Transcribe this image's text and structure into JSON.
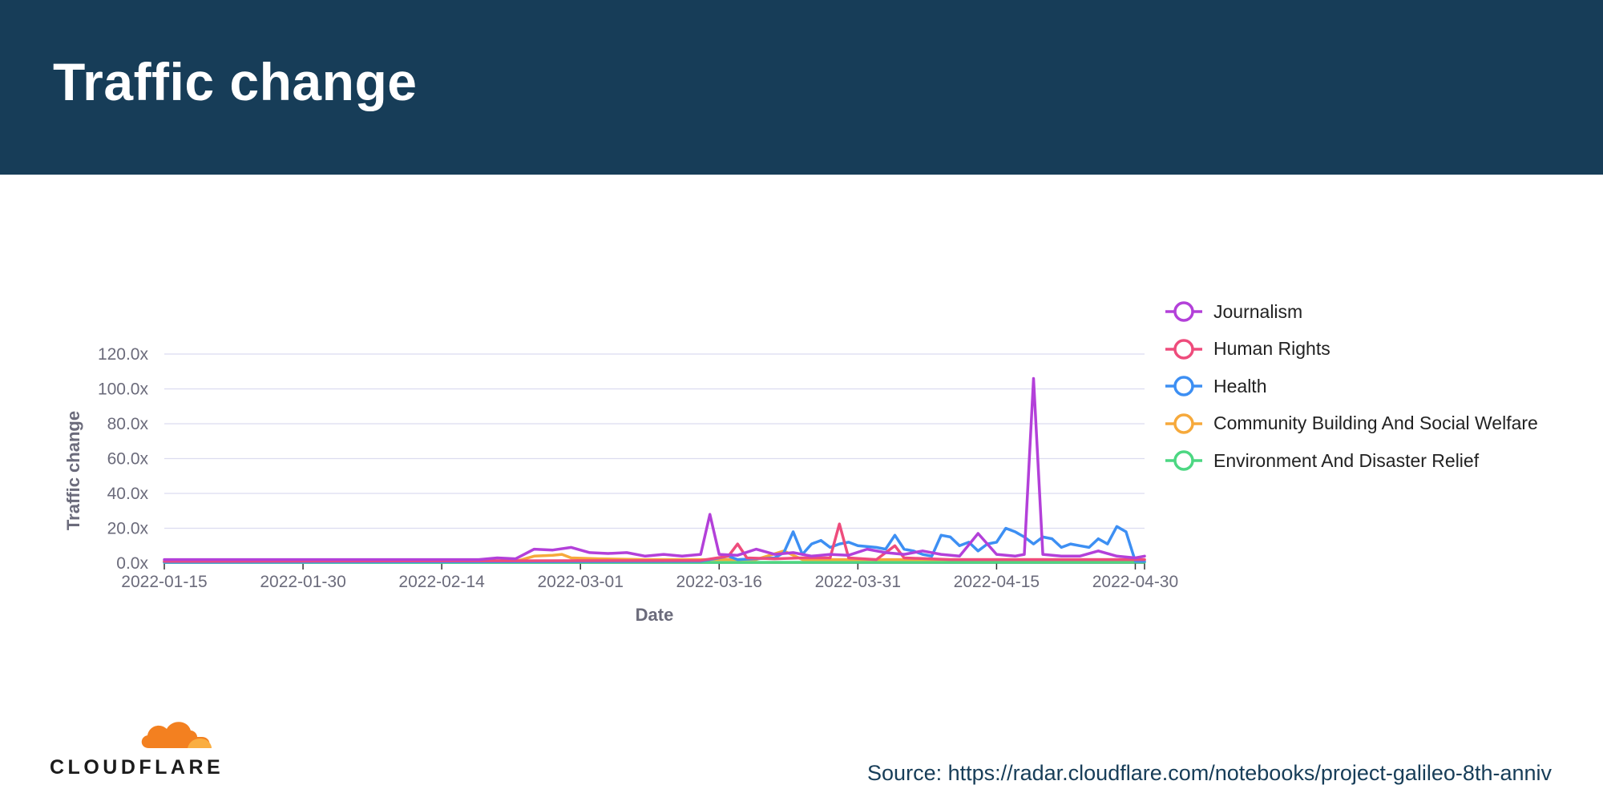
{
  "header": {
    "title": "Traffic change"
  },
  "footer": {
    "logo_text": "CLOUDFLARE",
    "source": "Source: https://radar.cloudflare.com/notebooks/project-galileo-8th-anniv"
  },
  "colors": {
    "header_bg": "#173d58",
    "grid": "#dcdcf0",
    "axis_text": "#6b6b7b"
  },
  "chart_data": {
    "type": "line",
    "xlabel": "Date",
    "ylabel": "Traffic change",
    "ylim": [
      0,
      120
    ],
    "yticks": [
      "0.0x",
      "20.0x",
      "40.0x",
      "60.0x",
      "80.0x",
      "100.0x",
      "120.0x"
    ],
    "xticks": [
      "2022-01-15",
      "2022-01-30",
      "2022-02-14",
      "2022-03-01",
      "2022-03-16",
      "2022-03-31",
      "2022-04-15",
      "2022-04-30"
    ],
    "x_start": "2022-01-15",
    "x_end": "2022-05-01",
    "grid": true,
    "legend_position": "right",
    "series": [
      {
        "name": "Journalism",
        "color": "#b340d9",
        "points": [
          [
            "2022-01-15",
            2
          ],
          [
            "2022-02-18",
            2
          ],
          [
            "2022-02-20",
            3
          ],
          [
            "2022-02-22",
            2.5
          ],
          [
            "2022-02-24",
            8
          ],
          [
            "2022-02-26",
            7.5
          ],
          [
            "2022-02-28",
            9
          ],
          [
            "2022-03-02",
            6
          ],
          [
            "2022-03-04",
            5.5
          ],
          [
            "2022-03-06",
            6
          ],
          [
            "2022-03-08",
            4
          ],
          [
            "2022-03-10",
            5
          ],
          [
            "2022-03-12",
            4
          ],
          [
            "2022-03-14",
            5
          ],
          [
            "2022-03-15",
            28
          ],
          [
            "2022-03-16",
            5
          ],
          [
            "2022-03-18",
            4.5
          ],
          [
            "2022-03-20",
            8
          ],
          [
            "2022-03-22",
            5
          ],
          [
            "2022-03-24",
            6
          ],
          [
            "2022-03-26",
            4
          ],
          [
            "2022-03-28",
            5
          ],
          [
            "2022-03-30",
            4.5
          ],
          [
            "2022-04-01",
            8
          ],
          [
            "2022-04-03",
            6
          ],
          [
            "2022-04-05",
            5
          ],
          [
            "2022-04-07",
            7
          ],
          [
            "2022-04-09",
            5
          ],
          [
            "2022-04-11",
            4
          ],
          [
            "2022-04-13",
            17
          ],
          [
            "2022-04-15",
            5
          ],
          [
            "2022-04-17",
            4
          ],
          [
            "2022-04-18",
            5
          ],
          [
            "2022-04-19",
            106
          ],
          [
            "2022-04-20",
            5
          ],
          [
            "2022-04-22",
            4
          ],
          [
            "2022-04-24",
            4
          ],
          [
            "2022-04-26",
            7
          ],
          [
            "2022-04-28",
            4
          ],
          [
            "2022-04-30",
            3
          ],
          [
            "2022-05-01",
            4
          ]
        ]
      },
      {
        "name": "Human Rights",
        "color": "#ee4c7c",
        "points": [
          [
            "2022-01-15",
            1
          ],
          [
            "2022-03-14",
            1.5
          ],
          [
            "2022-03-17",
            4
          ],
          [
            "2022-03-18",
            11
          ],
          [
            "2022-03-19",
            3
          ],
          [
            "2022-03-22",
            2.5
          ],
          [
            "2022-03-25",
            3
          ],
          [
            "2022-03-28",
            3
          ],
          [
            "2022-03-29",
            22.5
          ],
          [
            "2022-03-30",
            3
          ],
          [
            "2022-04-02",
            2
          ],
          [
            "2022-04-04",
            10
          ],
          [
            "2022-04-05",
            3
          ],
          [
            "2022-04-10",
            2
          ],
          [
            "2022-04-20",
            2
          ],
          [
            "2022-05-01",
            2
          ]
        ]
      },
      {
        "name": "Health",
        "color": "#3d8ff3",
        "points": [
          [
            "2022-01-15",
            0.5
          ],
          [
            "2022-03-14",
            1
          ],
          [
            "2022-03-16",
            3
          ],
          [
            "2022-03-17",
            4
          ],
          [
            "2022-03-18",
            2
          ],
          [
            "2022-03-22",
            3
          ],
          [
            "2022-03-23",
            6
          ],
          [
            "2022-03-24",
            18
          ],
          [
            "2022-03-25",
            5
          ],
          [
            "2022-03-26",
            11
          ],
          [
            "2022-03-27",
            13
          ],
          [
            "2022-03-28",
            9
          ],
          [
            "2022-03-29",
            11
          ],
          [
            "2022-03-30",
            12
          ],
          [
            "2022-03-31",
            10
          ],
          [
            "2022-04-02",
            9
          ],
          [
            "2022-04-03",
            8
          ],
          [
            "2022-04-04",
            16
          ],
          [
            "2022-04-05",
            8
          ],
          [
            "2022-04-06",
            7
          ],
          [
            "2022-04-07",
            5
          ],
          [
            "2022-04-08",
            4
          ],
          [
            "2022-04-09",
            16
          ],
          [
            "2022-04-10",
            15
          ],
          [
            "2022-04-11",
            10
          ],
          [
            "2022-04-12",
            12
          ],
          [
            "2022-04-13",
            7
          ],
          [
            "2022-04-14",
            11
          ],
          [
            "2022-04-15",
            12
          ],
          [
            "2022-04-16",
            20
          ],
          [
            "2022-04-17",
            18
          ],
          [
            "2022-04-18",
            15
          ],
          [
            "2022-04-19",
            11
          ],
          [
            "2022-04-20",
            15
          ],
          [
            "2022-04-21",
            14
          ],
          [
            "2022-04-22",
            9
          ],
          [
            "2022-04-23",
            11
          ],
          [
            "2022-04-24",
            10
          ],
          [
            "2022-04-25",
            9
          ],
          [
            "2022-04-26",
            14
          ],
          [
            "2022-04-27",
            11
          ],
          [
            "2022-04-28",
            21
          ],
          [
            "2022-04-29",
            18
          ],
          [
            "2022-04-30",
            1
          ],
          [
            "2022-05-01",
            1
          ]
        ]
      },
      {
        "name": "Community Building And Social Welfare",
        "color": "#f6a93b",
        "points": [
          [
            "2022-01-15",
            1
          ],
          [
            "2022-02-22",
            1
          ],
          [
            "2022-02-24",
            4
          ],
          [
            "2022-02-26",
            4.5
          ],
          [
            "2022-02-27",
            5
          ],
          [
            "2022-02-28",
            3
          ],
          [
            "2022-03-03",
            2.5
          ],
          [
            "2022-03-08",
            2
          ],
          [
            "2022-03-20",
            2
          ],
          [
            "2022-03-23",
            7
          ],
          [
            "2022-03-25",
            2
          ],
          [
            "2022-05-01",
            2
          ]
        ]
      },
      {
        "name": "Environment And Disaster Relief",
        "color": "#4cd782",
        "points": [
          [
            "2022-01-15",
            0.3
          ],
          [
            "2022-05-01",
            0.5
          ]
        ]
      }
    ]
  }
}
